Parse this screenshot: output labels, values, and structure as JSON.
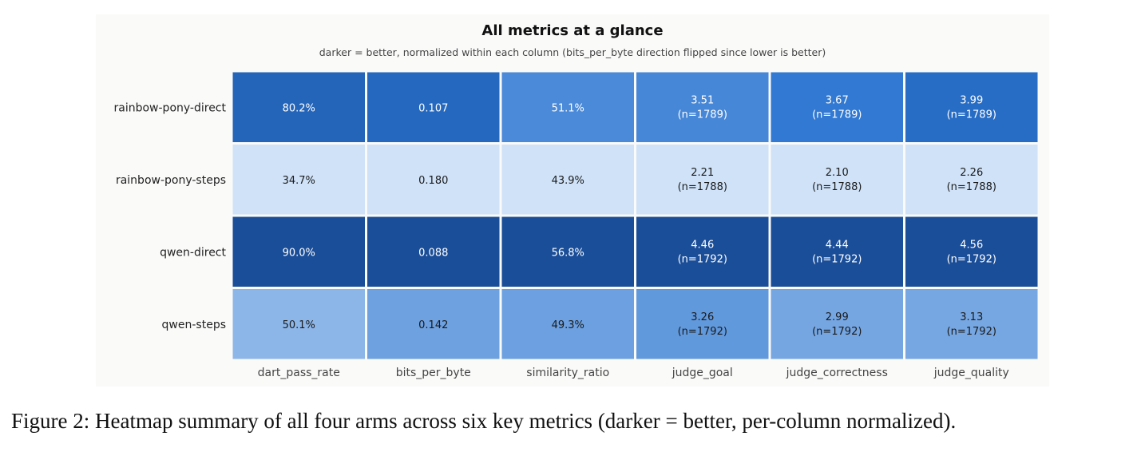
{
  "chart_data": {
    "type": "heatmap",
    "title": "All metrics at a glance",
    "subtitle": "darker = better, normalized within each column (bits_per_byte direction flipped since lower is better)",
    "rows": [
      "rainbow-pony-direct",
      "rainbow-pony-steps",
      "qwen-direct",
      "qwen-steps"
    ],
    "columns": [
      "dart_pass_rate",
      "bits_per_byte",
      "similarity_ratio",
      "judge_goal",
      "judge_correctness",
      "judge_quality"
    ],
    "values": [
      [
        80.2,
        0.107,
        51.1,
        3.51,
        3.67,
        3.99
      ],
      [
        34.7,
        0.18,
        43.9,
        2.21,
        2.1,
        2.26
      ],
      [
        90.0,
        0.088,
        56.8,
        4.46,
        4.44,
        4.56
      ],
      [
        50.1,
        0.142,
        49.3,
        3.26,
        2.99,
        3.13
      ]
    ],
    "cell_labels": [
      [
        "80.2%",
        "0.107",
        "51.1%",
        "3.51",
        "3.67",
        "3.99"
      ],
      [
        "34.7%",
        "0.180",
        "43.9%",
        "2.21",
        "2.10",
        "2.26"
      ],
      [
        "90.0%",
        "0.088",
        "56.8%",
        "4.46",
        "4.44",
        "4.56"
      ],
      [
        "50.1%",
        "0.142",
        "49.3%",
        "3.26",
        "2.99",
        "3.13"
      ]
    ],
    "cell_sublabels": [
      [
        "",
        "",
        "",
        "(n=1789)",
        "(n=1789)",
        "(n=1789)"
      ],
      [
        "",
        "",
        "",
        "(n=1788)",
        "(n=1788)",
        "(n=1788)"
      ],
      [
        "",
        "",
        "",
        "(n=1792)",
        "(n=1792)",
        "(n=1792)"
      ],
      [
        "",
        "",
        "",
        "(n=1792)",
        "(n=1792)",
        "(n=1792)"
      ]
    ],
    "lower_is_better": [
      false,
      true,
      false,
      false,
      false,
      false
    ],
    "colormap": {
      "low": "#cfe2f8",
      "mid": "#2a74d0",
      "high": "#1b4e98"
    },
    "grid": false,
    "legend": "none"
  },
  "caption": "Figure 2: Heatmap summary of all four arms across six key metrics (darker = better, per-column normalized)."
}
